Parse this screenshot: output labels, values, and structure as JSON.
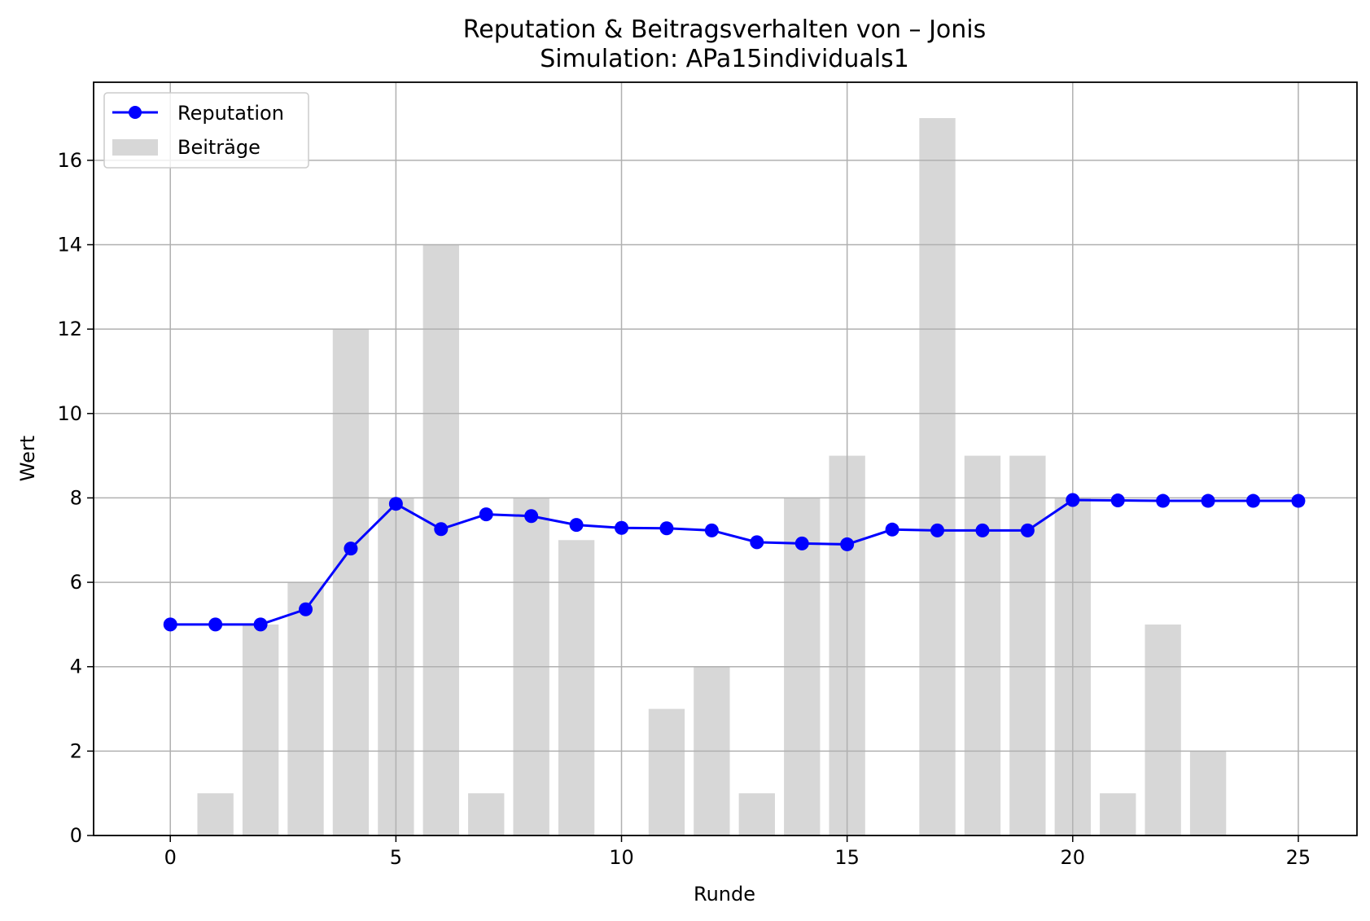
{
  "chart_data": {
    "type": "bar",
    "title": "Reputation & Beitragsverhalten von – Jonis",
    "subtitle": "Simulation: APa15individuals1",
    "xlabel": "Runde",
    "ylabel": "Wert",
    "xlim": [
      -1.7,
      26.3
    ],
    "ylim": [
      0,
      17.85
    ],
    "xticks": [
      0,
      5,
      10,
      15,
      20,
      25
    ],
    "yticks": [
      0,
      2,
      4,
      6,
      8,
      10,
      12,
      14,
      16
    ],
    "grid": true,
    "legend_position": "top-left",
    "x": [
      0,
      1,
      2,
      3,
      4,
      5,
      6,
      7,
      8,
      9,
      10,
      11,
      12,
      13,
      14,
      15,
      16,
      17,
      18,
      19,
      20,
      21,
      22,
      23,
      24,
      25
    ],
    "series": [
      {
        "name": "Reputation",
        "type": "line",
        "color": "#0000ff",
        "marker": "circle",
        "values": [
          5.0,
          5.0,
          5.0,
          5.36,
          6.8,
          7.86,
          7.26,
          7.61,
          7.57,
          7.36,
          7.29,
          7.28,
          7.23,
          6.95,
          6.92,
          6.9,
          7.25,
          7.23,
          7.23,
          7.23,
          7.95,
          7.94,
          7.93,
          7.93,
          7.93,
          7.93
        ]
      },
      {
        "name": "Beiträge",
        "type": "bar",
        "color": "#d3d3d3",
        "opacity": 0.9,
        "values": [
          0,
          1,
          5,
          6,
          12,
          8,
          14,
          1,
          8,
          7,
          0,
          3,
          4,
          1,
          8,
          9,
          0,
          17,
          9,
          9,
          8,
          1,
          5,
          2,
          0,
          0
        ]
      }
    ]
  }
}
